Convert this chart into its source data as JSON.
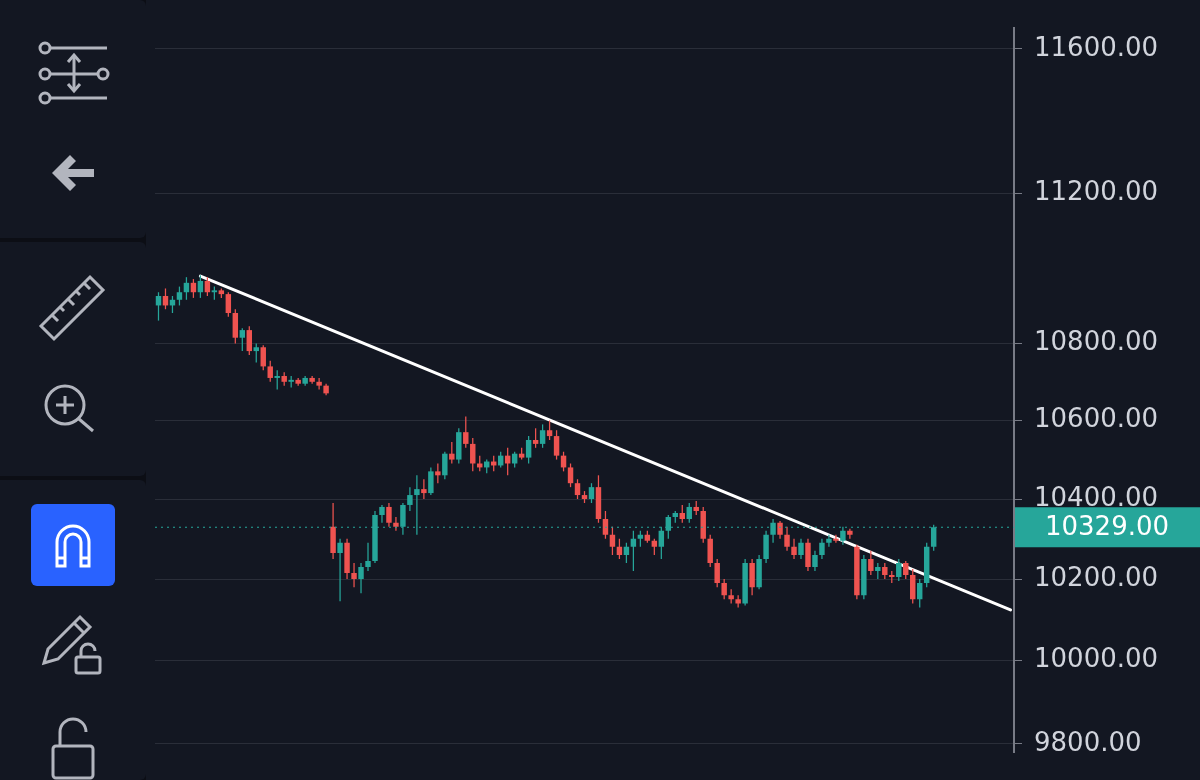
{
  "chart_data": {
    "type": "candlestick",
    "categories": [
      null,
      null,
      null,
      null,
      null,
      null,
      null,
      null,
      null,
      null,
      null,
      null,
      null,
      null,
      null,
      null,
      null,
      null,
      null,
      null,
      null,
      null,
      null,
      null,
      null,
      null,
      null,
      null,
      null,
      null,
      null,
      null,
      null,
      null,
      null,
      null,
      null,
      null,
      null,
      null,
      null,
      null,
      null,
      null,
      null,
      null,
      null,
      null,
      null,
      null,
      null,
      null,
      null,
      null,
      null,
      null,
      null,
      null,
      null,
      null,
      null,
      null,
      null,
      null,
      null,
      null,
      null,
      null,
      null,
      null,
      null,
      null,
      null,
      null,
      null,
      null,
      null,
      null,
      null,
      null,
      null,
      null,
      null,
      null,
      null,
      null,
      null,
      null,
      null,
      null,
      null,
      null,
      null,
      null,
      null,
      null,
      null,
      null,
      null,
      null,
      null,
      null,
      null,
      null,
      null,
      null,
      null,
      null,
      null,
      null,
      null,
      null,
      null,
      null,
      null,
      null,
      null,
      null,
      null,
      null,
      null,
      null,
      null
    ],
    "series": [
      {
        "type": "candlestick",
        "ohlc": [
          [
            10900,
            10935,
            10860,
            10925
          ],
          [
            10925,
            10945,
            10890,
            10900
          ],
          [
            10900,
            10925,
            10880,
            10915
          ],
          [
            10915,
            10950,
            10900,
            10935
          ],
          [
            10935,
            10975,
            10915,
            10960
          ],
          [
            10960,
            10970,
            10920,
            10935
          ],
          [
            10935,
            10980,
            10920,
            10965
          ],
          [
            10965,
            10975,
            10925,
            10935
          ],
          [
            10935,
            10950,
            10915,
            10940
          ],
          [
            10940,
            10945,
            10920,
            10930
          ],
          [
            10930,
            10935,
            10870,
            10880
          ],
          [
            10880,
            10890,
            10800,
            10815
          ],
          [
            10815,
            10840,
            10780,
            10835
          ],
          [
            10835,
            10845,
            10770,
            10780
          ],
          [
            10780,
            10800,
            10750,
            10790
          ],
          [
            10790,
            10795,
            10730,
            10740
          ],
          [
            10740,
            10755,
            10700,
            10710
          ],
          [
            10710,
            10730,
            10680,
            10715
          ],
          [
            10715,
            10725,
            10690,
            10700
          ],
          [
            10700,
            10715,
            10685,
            10705
          ],
          [
            10705,
            10710,
            10690,
            10695
          ],
          [
            10695,
            10715,
            10690,
            10710
          ],
          [
            10710,
            10715,
            10695,
            10700
          ],
          [
            10700,
            10710,
            10680,
            10690
          ],
          [
            10690,
            10695,
            10665,
            10670
          ],
          [
            10330,
            10390,
            10250,
            10265
          ],
          [
            10265,
            10300,
            10145,
            10290
          ],
          [
            10290,
            10300,
            10200,
            10215
          ],
          [
            10215,
            10240,
            10180,
            10200
          ],
          [
            10200,
            10240,
            10165,
            10230
          ],
          [
            10230,
            10290,
            10220,
            10245
          ],
          [
            10245,
            10370,
            10240,
            10360
          ],
          [
            10360,
            10385,
            10340,
            10380
          ],
          [
            10380,
            10390,
            10330,
            10340
          ],
          [
            10340,
            10355,
            10320,
            10330
          ],
          [
            10330,
            10390,
            10310,
            10385
          ],
          [
            10385,
            10430,
            10370,
            10410
          ],
          [
            10410,
            10460,
            10310,
            10425
          ],
          [
            10425,
            10450,
            10400,
            10415
          ],
          [
            10415,
            10480,
            10410,
            10470
          ],
          [
            10470,
            10490,
            10440,
            10460
          ],
          [
            10460,
            10520,
            10450,
            10515
          ],
          [
            10515,
            10545,
            10490,
            10500
          ],
          [
            10500,
            10580,
            10490,
            10570
          ],
          [
            10570,
            10610,
            10530,
            10540
          ],
          [
            10540,
            10555,
            10470,
            10490
          ],
          [
            10490,
            10510,
            10470,
            10480
          ],
          [
            10480,
            10500,
            10465,
            10495
          ],
          [
            10495,
            10510,
            10470,
            10485
          ],
          [
            10485,
            10520,
            10480,
            10510
          ],
          [
            10510,
            10530,
            10460,
            10490
          ],
          [
            10490,
            10520,
            10480,
            10515
          ],
          [
            10515,
            10530,
            10500,
            10505
          ],
          [
            10505,
            10560,
            10490,
            10550
          ],
          [
            10550,
            10580,
            10530,
            10540
          ],
          [
            10540,
            10590,
            10530,
            10575
          ],
          [
            10575,
            10600,
            10550,
            10560
          ],
          [
            10560,
            10575,
            10500,
            10510
          ],
          [
            10510,
            10520,
            10470,
            10480
          ],
          [
            10480,
            10490,
            10430,
            10440
          ],
          [
            10440,
            10450,
            10400,
            10410
          ],
          [
            10410,
            10420,
            10390,
            10400
          ],
          [
            10400,
            10440,
            10390,
            10430
          ],
          [
            10430,
            10460,
            10340,
            10350
          ],
          [
            10350,
            10370,
            10300,
            10310
          ],
          [
            10310,
            10330,
            10260,
            10280
          ],
          [
            10280,
            10300,
            10250,
            10260
          ],
          [
            10260,
            10290,
            10240,
            10280
          ],
          [
            10280,
            10320,
            10220,
            10300
          ],
          [
            10300,
            10320,
            10280,
            10310
          ],
          [
            10310,
            10320,
            10290,
            10295
          ],
          [
            10295,
            10300,
            10260,
            10280
          ],
          [
            10280,
            10330,
            10250,
            10320
          ],
          [
            10320,
            10360,
            10300,
            10355
          ],
          [
            10355,
            10370,
            10340,
            10365
          ],
          [
            10365,
            10385,
            10340,
            10350
          ],
          [
            10350,
            10390,
            10340,
            10380
          ],
          [
            10380,
            10395,
            10360,
            10370
          ],
          [
            10370,
            10380,
            10290,
            10300
          ],
          [
            10300,
            10310,
            10230,
            10240
          ],
          [
            10240,
            10250,
            10180,
            10190
          ],
          [
            10190,
            10200,
            10150,
            10160
          ],
          [
            10160,
            10175,
            10140,
            10150
          ],
          [
            10150,
            10160,
            10130,
            10140
          ],
          [
            10140,
            10250,
            10135,
            10240
          ],
          [
            10240,
            10250,
            10160,
            10180
          ],
          [
            10180,
            10260,
            10175,
            10250
          ],
          [
            10250,
            10320,
            10240,
            10310
          ],
          [
            10310,
            10350,
            10290,
            10340
          ],
          [
            10340,
            10345,
            10300,
            10310
          ],
          [
            10310,
            10330,
            10270,
            10280
          ],
          [
            10280,
            10300,
            10250,
            10260
          ],
          [
            10260,
            10300,
            10250,
            10290
          ],
          [
            10290,
            10300,
            10220,
            10230
          ],
          [
            10230,
            10270,
            10220,
            10260
          ],
          [
            10260,
            10300,
            10250,
            10290
          ],
          [
            10290,
            10310,
            10280,
            10300
          ],
          [
            10300,
            10310,
            10290,
            10295
          ],
          [
            10295,
            10330,
            10285,
            10320
          ],
          [
            10320,
            10325,
            10300,
            10310
          ],
          [
            10280,
            10285,
            10150,
            10160
          ],
          [
            10160,
            10260,
            10150,
            10250
          ],
          [
            10250,
            10270,
            10210,
            10220
          ],
          [
            10220,
            10240,
            10200,
            10230
          ],
          [
            10230,
            10240,
            10200,
            10210
          ],
          [
            10210,
            10220,
            10190,
            10205
          ],
          [
            10205,
            10250,
            10195,
            10240
          ],
          [
            10240,
            10245,
            10200,
            10210
          ],
          [
            10210,
            10225,
            10140,
            10150
          ],
          [
            10150,
            10200,
            10130,
            10190
          ],
          [
            10190,
            10290,
            10180,
            10280
          ],
          [
            10280,
            10335,
            10270,
            10329
          ],
          null,
          null,
          null,
          null,
          null,
          null,
          null,
          null,
          null,
          null,
          null
        ],
        "colors": [
          "#26a69a",
          "#ef5350",
          "#26a69a",
          "#26a69a",
          "#26a69a",
          "#ef5350",
          "#26a69a",
          "#ef5350",
          "#26a69a",
          "#ef5350",
          "#ef5350",
          "#ef5350",
          "#26a69a",
          "#ef5350",
          "#26a69a",
          "#ef5350",
          "#ef5350",
          "#26a69a",
          "#ef5350",
          "#26a69a",
          "#ef5350",
          "#26a69a",
          "#ef5350",
          "#ef5350",
          "#ef5350",
          "#ef5350",
          "#26a69a",
          "#ef5350",
          "#ef5350",
          "#26a69a",
          "#26a69a",
          "#26a69a",
          "#26a69a",
          "#ef5350",
          "#ef5350",
          "#26a69a",
          "#26a69a",
          "#26a69a",
          "#ef5350",
          "#26a69a",
          "#ef5350",
          "#26a69a",
          "#ef5350",
          "#26a69a",
          "#ef5350",
          "#ef5350",
          "#ef5350",
          "#26a69a",
          "#ef5350",
          "#26a69a",
          "#ef5350",
          "#26a69a",
          "#ef5350",
          "#26a69a",
          "#ef5350",
          "#26a69a",
          "#ef5350",
          "#ef5350",
          "#ef5350",
          "#ef5350",
          "#ef5350",
          "#ef5350",
          "#26a69a",
          "#ef5350",
          "#ef5350",
          "#ef5350",
          "#ef5350",
          "#26a69a",
          "#26a69a",
          "#26a69a",
          "#ef5350",
          "#ef5350",
          "#26a69a",
          "#26a69a",
          "#26a69a",
          "#ef5350",
          "#26a69a",
          "#ef5350",
          "#ef5350",
          "#ef5350",
          "#ef5350",
          "#ef5350",
          "#ef5350",
          "#ef5350",
          "#26a69a",
          "#ef5350",
          "#26a69a",
          "#26a69a",
          "#26a69a",
          "#ef5350",
          "#ef5350",
          "#ef5350",
          "#26a69a",
          "#ef5350",
          "#26a69a",
          "#26a69a",
          "#26a69a",
          "#ef5350",
          "#26a69a",
          "#ef5350",
          "#ef5350",
          "#26a69a",
          "#ef5350",
          "#26a69a",
          "#ef5350",
          "#ef5350",
          "#26a69a",
          "#ef5350",
          "#ef5350",
          "#26a69a",
          "#26a69a",
          "#26a69a",
          null,
          null,
          null,
          null,
          null,
          null,
          null,
          null,
          null,
          null,
          null
        ]
      },
      {
        "type": "line",
        "color": "#ffffff",
        "values": [
          null,
          null,
          null,
          null,
          null,
          null,
          10978,
          null,
          null,
          null,
          null,
          null,
          null,
          null,
          null,
          null,
          null,
          null,
          null,
          null,
          null,
          null,
          null,
          null,
          null,
          null,
          null,
          null,
          null,
          null,
          null,
          null,
          null,
          null,
          null,
          null,
          null,
          null,
          null,
          null,
          null,
          null,
          null,
          null,
          null,
          null,
          null,
          null,
          null,
          null,
          null,
          null,
          null,
          null,
          null,
          null,
          null,
          null,
          null,
          null,
          null,
          null,
          null,
          null,
          null,
          null,
          null,
          null,
          null,
          null,
          null,
          null,
          null,
          null,
          null,
          null,
          null,
          null,
          null,
          null,
          null,
          null,
          null,
          null,
          null,
          null,
          null,
          null,
          null,
          null,
          null,
          null,
          null,
          null,
          null,
          null,
          null,
          null,
          null,
          null,
          null,
          null,
          null,
          null,
          null,
          null,
          null,
          null,
          null,
          null,
          null,
          null,
          null,
          null,
          null,
          null,
          null,
          null,
          null,
          null,
          null,
          null,
          10124
        ]
      }
    ],
    "log": true,
    "ylim": [
      9780,
      11660
    ],
    "yticks": [
      {
        "value": 9800,
        "label": "9800.00"
      },
      {
        "value": 10000,
        "label": "10000.00"
      },
      {
        "value": 10200,
        "label": "10200.00"
      },
      {
        "value": 10400,
        "label": "10400.00"
      },
      {
        "value": 10600,
        "label": "10600.00"
      },
      {
        "value": 10800,
        "label": "10800.00"
      },
      {
        "value": 11200,
        "label": "11200.00"
      },
      {
        "value": 11600,
        "label": "11600.00"
      }
    ],
    "grid": "y",
    "tick_labels": "y",
    "ref_lines": [
      {
        "axis": "y",
        "value": 10329,
        "label": "10329.00",
        "color": "#26a69a",
        "line_style": "dotted"
      }
    ]
  }
}
